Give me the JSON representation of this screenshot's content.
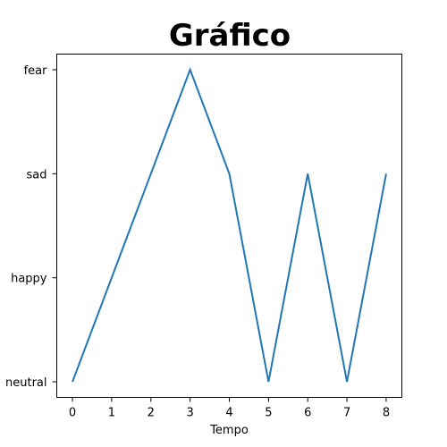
{
  "chart_data": {
    "type": "line",
    "title": "Gráfico",
    "xlabel": "Tempo",
    "ylabel": "",
    "x": [
      0,
      1,
      2,
      3,
      4,
      5,
      6,
      7,
      8
    ],
    "x_ticks": [
      0,
      1,
      2,
      3,
      4,
      5,
      6,
      7,
      8
    ],
    "y_categories": [
      "neutral",
      "happy",
      "sad",
      "fear"
    ],
    "series": [
      {
        "values": [
          "neutral",
          "happy",
          "sad",
          "fear",
          "sad",
          "neutral",
          "sad",
          "neutral",
          "sad"
        ],
        "color": "#1f77b4"
      }
    ],
    "xlim": [
      -0.4,
      8.4
    ],
    "ylim": [
      -0.15,
      3.15
    ],
    "grid": false,
    "legend": "none"
  }
}
